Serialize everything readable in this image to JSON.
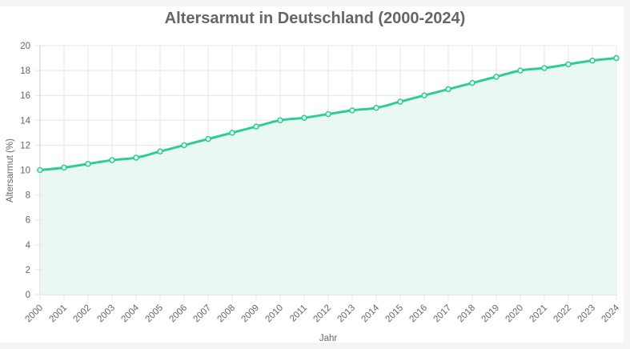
{
  "chart_data": {
    "type": "line",
    "title": "Altersarmut in Deutschland (2000-2024)",
    "xlabel": "Jahr",
    "ylabel": "Altersarmut (%)",
    "categories": [
      "2000",
      "2001",
      "2002",
      "2003",
      "2004",
      "2005",
      "2006",
      "2007",
      "2008",
      "2009",
      "2010",
      "2011",
      "2012",
      "2013",
      "2014",
      "2015",
      "2016",
      "2017",
      "2018",
      "2019",
      "2020",
      "2021",
      "2022",
      "2023",
      "2024"
    ],
    "series": [
      {
        "name": "Altersarmut (%)",
        "values": [
          10.0,
          10.2,
          10.5,
          10.8,
          11.0,
          11.5,
          12.0,
          12.5,
          13.0,
          13.5,
          14.0,
          14.2,
          14.5,
          14.8,
          15.0,
          15.5,
          16.0,
          16.5,
          17.0,
          17.5,
          18.0,
          18.2,
          18.5,
          18.8,
          19.0
        ],
        "color": "#2ecc96",
        "fill": "#e6f7f0"
      }
    ],
    "ylim": [
      0,
      20
    ],
    "yticks": [
      0,
      2,
      4,
      6,
      8,
      10,
      12,
      14,
      16,
      18,
      20
    ],
    "grid": true,
    "legend": "none",
    "filled_area": true
  },
  "colors": {
    "line": "#2ecc96",
    "area": "#e6f7f0",
    "grid": "#e5e5e5",
    "text": "#666666",
    "background": "#f5f5f5",
    "card": "#ffffff"
  }
}
